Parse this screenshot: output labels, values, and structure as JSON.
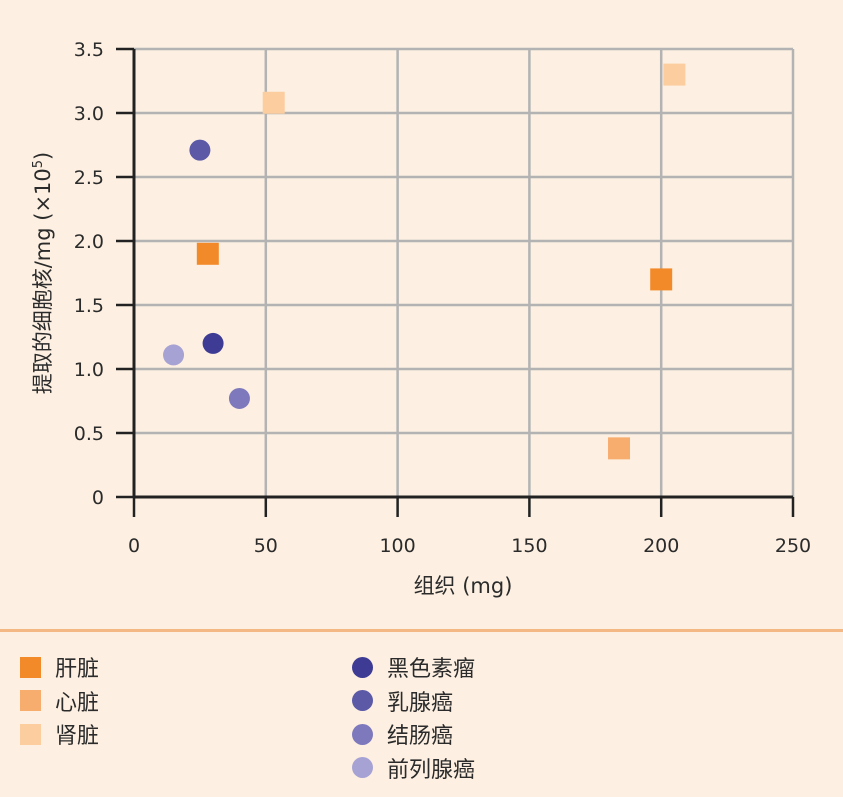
{
  "chart_data": {
    "type": "scatter",
    "title": "",
    "xlabel": "组织 (mg)",
    "ylabel": "提取的细胞核/mg (×10",
    "ylabel_sup": "5",
    "ylabel_tail": ")",
    "xlim": [
      0,
      250
    ],
    "ylim": [
      0,
      3.5
    ],
    "x_ticks": [
      "0",
      "50",
      "100",
      "150",
      "200",
      "250"
    ],
    "y_ticks": [
      "0",
      "0.5",
      "1.0",
      "1.5",
      "2.0",
      "2.5",
      "3.0",
      "3.5"
    ],
    "grid": true,
    "legend_position": "bottom",
    "series": [
      {
        "name": "肝脏",
        "marker": "square",
        "color": "#f28a2a",
        "points": [
          {
            "x": 28,
            "y": 1.9
          },
          {
            "x": 200,
            "y": 1.7
          }
        ]
      },
      {
        "name": "心脏",
        "marker": "square",
        "color": "#f7ad6d",
        "points": [
          {
            "x": 184,
            "y": 0.38
          }
        ]
      },
      {
        "name": "肾脏",
        "marker": "square",
        "color": "#fbcd9f",
        "points": [
          {
            "x": 53,
            "y": 3.08
          },
          {
            "x": 205,
            "y": 3.3
          }
        ]
      },
      {
        "name": "黑色素瘤",
        "marker": "circle",
        "color": "#3d3b94",
        "points": [
          {
            "x": 30,
            "y": 1.2
          }
        ]
      },
      {
        "name": "乳腺癌",
        "marker": "circle",
        "color": "#5c59a6",
        "points": [
          {
            "x": 25,
            "y": 2.71
          }
        ]
      },
      {
        "name": "结肠癌",
        "marker": "circle",
        "color": "#7e79bd",
        "points": [
          {
            "x": 40,
            "y": 0.77
          }
        ]
      },
      {
        "name": "前列腺癌",
        "marker": "circle",
        "color": "#a6a2d3",
        "points": [
          {
            "x": 15,
            "y": 1.11
          }
        ]
      }
    ]
  }
}
